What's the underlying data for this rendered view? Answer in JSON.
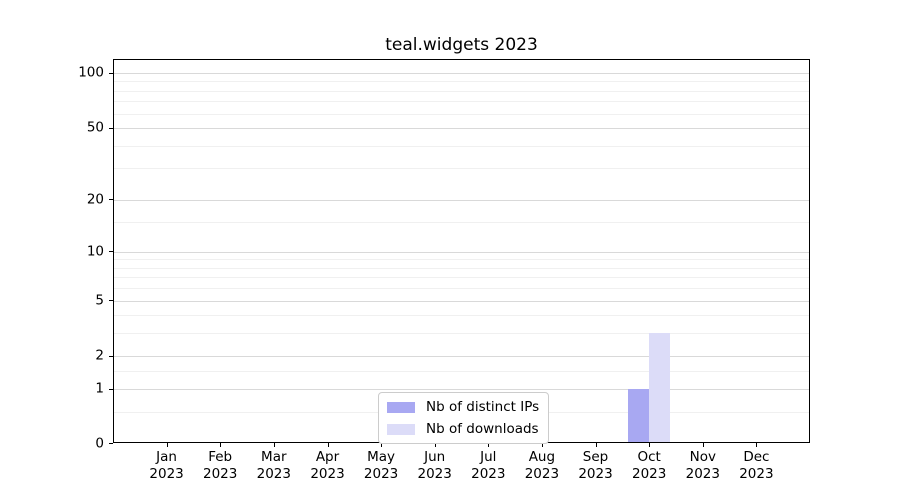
{
  "chart_data": {
    "type": "bar",
    "title": "teal.widgets 2023",
    "categories": [
      "Jan",
      "Feb",
      "Mar",
      "Apr",
      "May",
      "Jun",
      "Jul",
      "Aug",
      "Sep",
      "Oct",
      "Nov",
      "Dec"
    ],
    "category_year": "2023",
    "series": [
      {
        "name": "Nb of distinct IPs",
        "color": "#a8a8f2",
        "values": [
          0,
          0,
          0,
          0,
          0,
          0,
          0,
          0,
          0,
          1,
          0,
          0
        ]
      },
      {
        "name": "Nb of downloads",
        "color": "#dcdcf8",
        "values": [
          0,
          0,
          0,
          0,
          0,
          0,
          0,
          0,
          0,
          3,
          0,
          0
        ]
      }
    ],
    "y_axis": {
      "scale": "log1p",
      "ticks": [
        0,
        1,
        2,
        5,
        10,
        20,
        50,
        100
      ],
      "minor_ticks": [
        0.5,
        1.5,
        3,
        4,
        6,
        7,
        8,
        9,
        15,
        30,
        40,
        60,
        70,
        80,
        90
      ],
      "ylim": [
        0,
        124
      ]
    },
    "x_axis": {
      "label": ""
    },
    "legend": {
      "position": "lower center"
    },
    "grid": {
      "major_color": "#d9d9d9",
      "minor_color": "#f0f0f0"
    },
    "colors": {
      "spine": "#000000",
      "background": "#ffffff"
    }
  }
}
